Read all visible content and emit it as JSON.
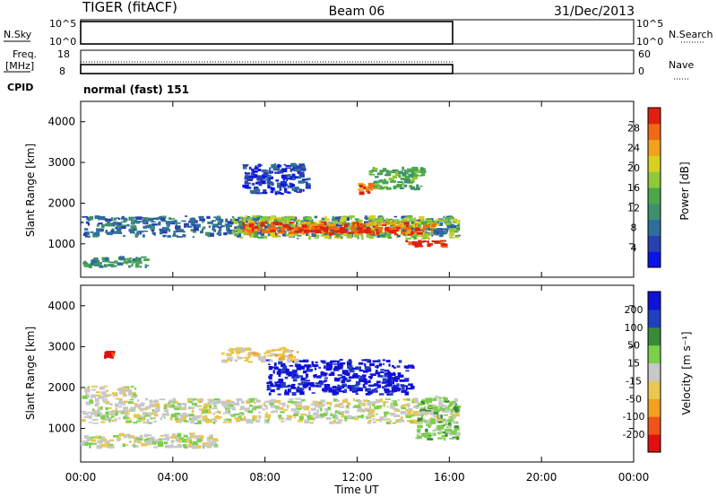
{
  "header": {
    "radar": "TIGER (fitACF)",
    "beam": "Beam 06",
    "date": "31/Dec/2013"
  },
  "aux": {
    "nsky_label": "N.Sky",
    "nsky_ticks": [
      "10^5",
      "10^0"
    ],
    "nsearch_label": "N.Search",
    "nsearch_ticks": [
      "10^5",
      "10^0"
    ],
    "freq_label_1": "Freq.",
    "freq_label_2": "[MHz]",
    "freq_ticks": [
      "18",
      "8"
    ],
    "nave_label": "Nave",
    "nave_ticks": [
      "60",
      "0"
    ],
    "cpid_label": "CPID",
    "cpid_value": "normal (fast) 151"
  },
  "chart_data": [
    {
      "type": "heatmap",
      "name": "power",
      "ylabel": "Slant Range [km]",
      "ylim": [
        180,
        4500
      ],
      "yticks": [
        "4000",
        "3000",
        "2000",
        "1000"
      ],
      "xlim_hours": [
        0,
        24
      ],
      "data_end_hour": 16.5,
      "colorbar_label": "Power [dB]",
      "colorbar_ticks": [
        "28",
        "24",
        "20",
        "16",
        "12",
        "8",
        "4"
      ],
      "colors": [
        "#0a14e6",
        "#2a3fb0",
        "#2e6e9a",
        "#3f8f6e",
        "#4aa84a",
        "#8fc83a",
        "#d8d020",
        "#f0a21c",
        "#f06a14",
        "#e02010"
      ],
      "regions": [
        {
          "x": [
            0,
            16.5
          ],
          "y": [
            1150,
            1700
          ],
          "level": 2
        },
        {
          "x": [
            0,
            3
          ],
          "y": [
            400,
            700
          ],
          "level": 3
        },
        {
          "x": [
            6.5,
            16.5
          ],
          "y": [
            1100,
            1700
          ],
          "level": 5
        },
        {
          "x": [
            7,
            15.5
          ],
          "y": [
            1200,
            1550
          ],
          "level": 8
        },
        {
          "x": [
            9,
            14
          ],
          "y": [
            1250,
            1450
          ],
          "level": 9
        },
        {
          "x": [
            14,
            16
          ],
          "y": [
            900,
            1100
          ],
          "level": 9
        },
        {
          "x": [
            12,
            13
          ],
          "y": [
            2200,
            2500
          ],
          "level": 8
        },
        {
          "x": [
            7,
            10
          ],
          "y": [
            2200,
            3000
          ],
          "level": 1
        },
        {
          "x": [
            12.5,
            15
          ],
          "y": [
            2300,
            2900
          ],
          "level": 4
        }
      ]
    },
    {
      "type": "heatmap",
      "name": "velocity",
      "ylabel": "Slant Range [km]",
      "ylim": [
        180,
        4500
      ],
      "yticks": [
        "4000",
        "3000",
        "2000",
        "1000"
      ],
      "xlim_hours": [
        0,
        24
      ],
      "data_end_hour": 16.5,
      "colorbar_label": "Velocity [m s⁻¹]",
      "colorbar_ticks": [
        "200",
        "100",
        "50",
        "15",
        "-15",
        "-50",
        "-100",
        "-200"
      ],
      "colors": [
        "#e01010",
        "#f0541a",
        "#f2a020",
        "#e8c850",
        "#c8c8c8",
        "#7ad04a",
        "#3a8a3a",
        "#2040c0",
        "#1010d8"
      ],
      "regions": [
        {
          "x": [
            0,
            16.5
          ],
          "y": [
            1100,
            1750
          ],
          "level": 4
        },
        {
          "x": [
            0,
            6
          ],
          "y": [
            500,
            900
          ],
          "level": 4
        },
        {
          "x": [
            0,
            2.5
          ],
          "y": [
            1700,
            2050
          ],
          "level": 4
        },
        {
          "x": [
            8,
            14.5
          ],
          "y": [
            1800,
            2700
          ],
          "level": 8
        },
        {
          "x": [
            14.5,
            16.5
          ],
          "y": [
            700,
            1800
          ],
          "level": 5
        },
        {
          "x": [
            1,
            1.5
          ],
          "y": [
            2700,
            2900
          ],
          "level": 0
        },
        {
          "x": [
            6,
            9.5
          ],
          "y": [
            2600,
            3000
          ],
          "level": 3
        }
      ]
    }
  ],
  "xaxis": {
    "ticks": [
      "00:00",
      "04:00",
      "08:00",
      "12:00",
      "16:00",
      "20:00",
      "00:00"
    ],
    "label": "Time UT"
  }
}
